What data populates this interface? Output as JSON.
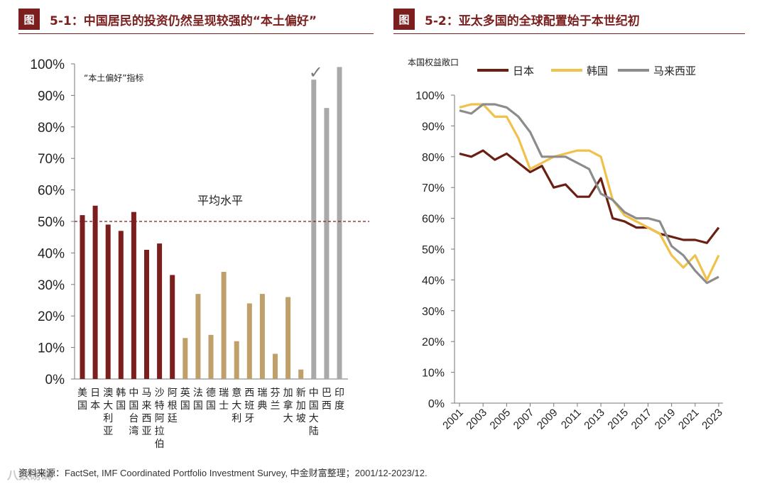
{
  "header": {
    "left_badge": "图",
    "left_title": "5-1：中国居民的投资仍然呈现较强的“本土偏好”",
    "right_badge": "图",
    "right_title": "5-2：亚太多国的全球配置始于本世纪初"
  },
  "source": "资料来源：FactSet, IMF Coordinated Portfolio Investment Survey, 中金财富整理；2001/12-2023/12.",
  "watermark": "八数磅礴",
  "chart_data": [
    {
      "type": "bar",
      "title": "5-1：中国居民的投资仍然呈现较强的“本土偏好”",
      "annotation": "“本土偏好”指标",
      "reference_line": {
        "value": 50,
        "label": "平均水平",
        "color": "#7b1e1e"
      },
      "checkmark_label": "✓",
      "ylim": [
        0,
        100
      ],
      "yticks": [
        "0%",
        "10%",
        "20%",
        "30%",
        "40%",
        "50%",
        "60%",
        "70%",
        "80%",
        "90%",
        "100%"
      ],
      "categories": [
        "美国",
        "日本",
        "澳大利亚",
        "韩国",
        "中国台湾",
        "马来西亚",
        "沙特阿拉伯",
        "阿根廷",
        "英国",
        "法国",
        "德国",
        "瑞士",
        "意大利",
        "西班牙",
        "瑞典",
        "芬兰",
        "加拿大",
        "新加坡",
        "中国大陆",
        "巴西",
        "印度"
      ],
      "values": [
        52,
        55,
        49,
        47,
        53,
        41,
        43,
        33,
        13,
        27,
        14,
        34,
        12,
        24,
        27,
        8,
        26,
        3,
        95,
        86,
        99
      ],
      "groups": [
        "asia_us",
        "asia_us",
        "asia_us",
        "asia_us",
        "asia_us",
        "asia_us",
        "asia_us",
        "asia_us",
        "developed",
        "developed",
        "developed",
        "developed",
        "developed",
        "developed",
        "developed",
        "developed",
        "developed",
        "developed",
        "emerging",
        "emerging",
        "emerging"
      ],
      "colors": {
        "asia_us": "#7b1e1e",
        "developed": "#bfa06b",
        "emerging": "#a9a9a9",
        "checkmark": "#7a7a7a"
      }
    },
    {
      "type": "line",
      "title": "5-2：亚太多国的全球配置始于本世纪初",
      "ylabel": "本国权益敞口",
      "ylim": [
        0,
        100
      ],
      "yticks": [
        "0%",
        "10%",
        "20%",
        "30%",
        "40%",
        "50%",
        "60%",
        "70%",
        "80%",
        "90%",
        "100%"
      ],
      "xticks": [
        "2001",
        "2003",
        "2005",
        "2007",
        "2009",
        "2011",
        "2013",
        "2015",
        "2017",
        "2019",
        "2021",
        "2023"
      ],
      "legend_position": "top",
      "series": [
        {
          "name": "日本",
          "color": "#6b1f13",
          "x": [
            2001,
            2002,
            2003,
            2004,
            2005,
            2006,
            2007,
            2008,
            2009,
            2010,
            2011,
            2012,
            2013,
            2014,
            2015,
            2016,
            2017,
            2018,
            2019,
            2020,
            2021,
            2022,
            2023
          ],
          "values": [
            81,
            80,
            82,
            79,
            81,
            78,
            75,
            77,
            70,
            71,
            67,
            67,
            73,
            60,
            59,
            57,
            57,
            55,
            54,
            53,
            53,
            52,
            57
          ]
        },
        {
          "name": "韩国",
          "color": "#f0c24b",
          "x": [
            2001,
            2002,
            2003,
            2004,
            2005,
            2006,
            2007,
            2008,
            2009,
            2010,
            2011,
            2012,
            2013,
            2014,
            2015,
            2016,
            2017,
            2018,
            2019,
            2020,
            2021,
            2022,
            2023
          ],
          "values": [
            96,
            97,
            97,
            93,
            93,
            86,
            76,
            78,
            80,
            81,
            82,
            82,
            80,
            66,
            61,
            59,
            57,
            55,
            48,
            44,
            48,
            40,
            48
          ]
        },
        {
          "name": "马来西亚",
          "color": "#8c8c8c",
          "x": [
            2001,
            2002,
            2003,
            2004,
            2005,
            2006,
            2007,
            2008,
            2009,
            2010,
            2011,
            2012,
            2013,
            2014,
            2015,
            2016,
            2017,
            2018,
            2019,
            2020,
            2021,
            2022,
            2023
          ],
          "values": [
            95,
            94,
            97,
            97,
            96,
            93,
            88,
            80,
            80,
            80,
            78,
            76,
            68,
            66,
            62,
            60,
            60,
            59,
            51,
            48,
            43,
            39,
            41
          ]
        }
      ]
    }
  ]
}
